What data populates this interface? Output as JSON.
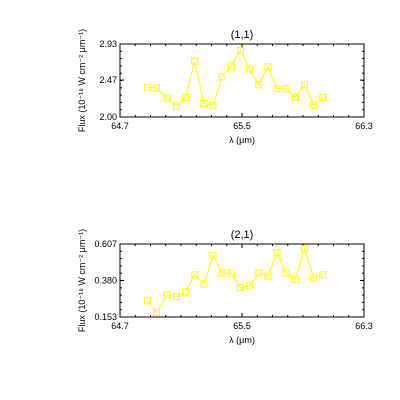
{
  "chart_data": [
    {
      "type": "line",
      "title": "(1,1)",
      "xlabel": "λ (μm)",
      "ylabel": "Flux (10⁻¹⁸ W cm⁻² μm⁻¹)",
      "xlim": [
        64.7,
        66.3
      ],
      "ylim": [
        2.0,
        2.93
      ],
      "xticks": [
        "64.7",
        "65.5",
        "66.3"
      ],
      "yticks": [
        "2.00",
        "2.47",
        "2.93"
      ],
      "marker": "square",
      "color": "#ffff00",
      "x": [
        64.88,
        64.94,
        65.01,
        65.07,
        65.13,
        65.19,
        65.25,
        65.31,
        65.37,
        65.43,
        65.49,
        65.55,
        65.61,
        65.67,
        65.73,
        65.79,
        65.85,
        65.91,
        65.97,
        66.03
      ],
      "y": [
        2.38,
        2.37,
        2.24,
        2.14,
        2.25,
        2.71,
        2.17,
        2.15,
        2.51,
        2.65,
        2.85,
        2.61,
        2.41,
        2.64,
        2.36,
        2.36,
        2.25,
        2.41,
        2.15,
        2.25
      ]
    },
    {
      "type": "line",
      "title": "(2,1)",
      "xlabel": "λ (μm)",
      "ylabel": "Flux (10⁻¹⁸ W cm⁻² μm⁻¹)",
      "xlim": [
        64.7,
        66.3
      ],
      "ylim": [
        0.153,
        0.607
      ],
      "xticks": [
        "64.7",
        "65.5",
        "66.3"
      ],
      "yticks": [
        "0.153",
        "0.380",
        "0.607"
      ],
      "marker": "square",
      "color": "#ffff00",
      "x": [
        64.88,
        64.94,
        65.01,
        65.07,
        65.13,
        65.19,
        65.25,
        65.31,
        65.37,
        65.43,
        65.49,
        65.55,
        65.61,
        65.67,
        65.73,
        65.79,
        65.85,
        65.91,
        65.97,
        66.03
      ],
      "y": [
        0.253,
        0.181,
        0.29,
        0.28,
        0.309,
        0.416,
        0.357,
        0.537,
        0.426,
        0.426,
        0.337,
        0.347,
        0.426,
        0.407,
        0.552,
        0.426,
        0.387,
        0.577,
        0.396,
        0.416
      ]
    }
  ]
}
